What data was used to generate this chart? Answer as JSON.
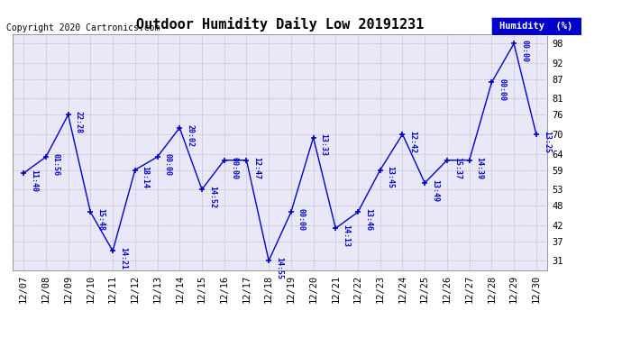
{
  "title": "Outdoor Humidity Daily Low 20191231",
  "copyright": "Copyright 2020 Cartronics.com",
  "legend_label": "Humidity  (%)",
  "background_color": "#ffffff",
  "plot_bg_color": "#e8e8f8",
  "line_color": "#0000cc",
  "marker_color": "#000080",
  "grid_color": "#aaaaaa",
  "x_labels": [
    "12/07",
    "12/08",
    "12/09",
    "12/10",
    "12/11",
    "12/12",
    "12/13",
    "12/14",
    "12/15",
    "12/16",
    "12/17",
    "12/18",
    "12/19",
    "12/20",
    "12/21",
    "12/22",
    "12/23",
    "12/24",
    "12/25",
    "12/26",
    "12/27",
    "12/28",
    "12/29",
    "12/30"
  ],
  "y_values": [
    58,
    63,
    76,
    46,
    34,
    59,
    63,
    72,
    53,
    62,
    62,
    31,
    46,
    69,
    41,
    46,
    59,
    70,
    55,
    62,
    62,
    86,
    98,
    70
  ],
  "annotations": [
    "11:40",
    "01:56",
    "22:28",
    "15:48",
    "14:21",
    "18:14",
    "00:00",
    "20:02",
    "14:52",
    "00:00",
    "12:47",
    "14:55",
    "00:00",
    "13:33",
    "14:13",
    "13:46",
    "13:45",
    "12:42",
    "13:49",
    "15:37",
    "14:39",
    "00:00",
    "00:00",
    "13:25"
  ],
  "y_ticks": [
    31,
    37,
    42,
    48,
    53,
    59,
    64,
    70,
    76,
    81,
    87,
    92,
    98
  ],
  "ylim": [
    28,
    101
  ],
  "title_fontsize": 11,
  "annotation_fontsize": 6,
  "tick_fontsize": 7.5,
  "copyright_fontsize": 7,
  "legend_fontsize": 7.5
}
